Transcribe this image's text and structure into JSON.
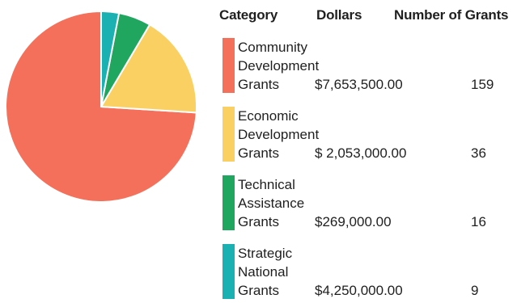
{
  "colors": {
    "community": "#f4705a",
    "economic": "#f9d061",
    "technical": "#20a65e",
    "strategic": "#1bb0b1"
  },
  "table": {
    "headers": {
      "category": "Category",
      "dollars": "Dollars",
      "grants": "Number of Grants"
    },
    "rows": [
      {
        "lines": [
          "Community",
          "Development",
          "Grants"
        ],
        "dollars": "$7,653,500.00",
        "count": "159"
      },
      {
        "lines": [
          "Economic",
          "Development",
          "Grants"
        ],
        "dollars": "$ 2,053,000.00",
        "count": "36"
      },
      {
        "lines": [
          "Technical",
          "Assistance",
          "Grants"
        ],
        "dollars": "$269,000.00",
        "count": "16"
      },
      {
        "lines": [
          "Strategic",
          "National",
          "Grants"
        ],
        "dollars": "$4,250,000.00",
        "count": "9"
      }
    ]
  },
  "chart_data": {
    "type": "pie",
    "categories": [
      "Community Development Grants",
      "Economic Development Grants",
      "Technical Assistance Grants",
      "Strategic National Grants"
    ],
    "values": [
      74,
      17.5,
      5.5,
      3
    ],
    "colors": [
      "#f4705a",
      "#f9d061",
      "#20a65e",
      "#1bb0b1"
    ],
    "legend": "right"
  }
}
